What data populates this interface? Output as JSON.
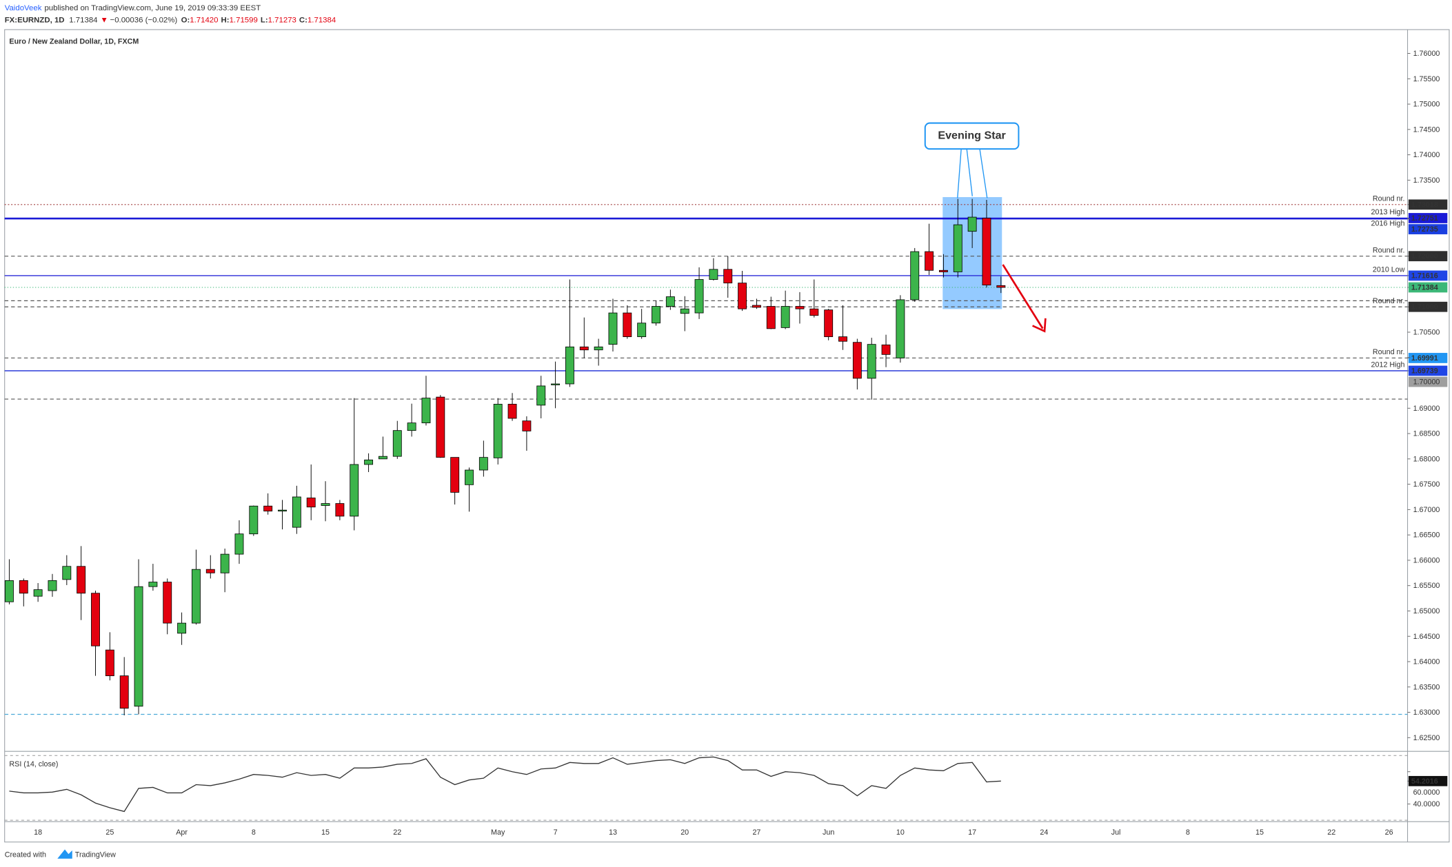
{
  "header": {
    "author": "VaidoVeek",
    "published": "published on TradingView.com, June 19, 2019 09:33:39 EEST",
    "symbol": "FX:EURNZD, 1D",
    "last": "1.71384",
    "arrow": "▼",
    "change": "−0.00036 (−0.02%)",
    "o_label": "O:",
    "o": "1.71420",
    "h_label": "H:",
    "h": "1.71599",
    "l_label": "L:",
    "l": "1.71273",
    "c_label": "C:",
    "c": "1.71384"
  },
  "footer": {
    "created": "Created with",
    "brand": "TradingView"
  },
  "annotations": [
    {
      "text": "Evening Star"
    }
  ],
  "chart_data": [
    {
      "type": "candlestick",
      "title": "Euro / New Zealand Dollar, 1D, FXCM",
      "categories": [
        null,
        null,
        "18",
        null,
        null,
        null,
        null,
        "25",
        null,
        null,
        null,
        null,
        "Apr",
        null,
        null,
        null,
        null,
        "8",
        null,
        null,
        null,
        null,
        "15",
        null,
        null,
        null,
        null,
        "22",
        null,
        null,
        null,
        null,
        null,
        null,
        "May",
        null,
        null,
        null,
        "7",
        null,
        null,
        null,
        "13",
        null,
        null,
        null,
        null,
        "20",
        null,
        null,
        null,
        null,
        "27",
        null,
        null,
        null,
        null,
        "Jun",
        null,
        null,
        null,
        null,
        "10",
        null,
        null,
        null,
        null,
        "17",
        null,
        null,
        null,
        null,
        "24",
        null,
        null,
        null,
        null,
        "Jul",
        null,
        null,
        null,
        null,
        "8",
        null,
        null,
        null,
        null,
        "15",
        null,
        null,
        null,
        null,
        "22",
        null,
        null,
        null,
        "26"
      ],
      "open": [
        1.6518,
        1.656,
        1.6529,
        1.654,
        1.6562,
        1.6588,
        1.6535,
        1.6423,
        1.6372,
        1.6312,
        1.6548,
        1.6557,
        1.6456,
        1.6476,
        1.6582,
        1.6575,
        1.6612,
        1.6652,
        1.6707,
        1.6697,
        1.6665,
        1.6723,
        1.6708,
        1.6712,
        1.6687,
        1.6789,
        1.68,
        1.6805,
        1.6856,
        1.6871,
        1.6922,
        1.6803,
        1.6749,
        1.6778,
        1.6802,
        1.6908,
        1.6875,
        1.6906,
        1.6946,
        1.6948,
        1.7021,
        1.7015,
        1.7026,
        1.7088,
        1.7041,
        1.7068,
        1.7101,
        1.7087,
        1.7088,
        1.7154,
        1.7174,
        1.7147,
        1.7103,
        1.7101,
        1.7059,
        1.7101,
        1.7096,
        1.7094,
        1.7041,
        1.703,
        1.6959,
        1.7025,
        1.6999,
        1.7114,
        1.7209,
        1.7172,
        1.7169,
        1.7249,
        1.7275,
        1.7142,
        null,
        null,
        null,
        null,
        null,
        null,
        null,
        null,
        null,
        null,
        null,
        null,
        null,
        null,
        null,
        null,
        null,
        null,
        null,
        null,
        null,
        null,
        null,
        null,
        null,
        null,
        null
      ],
      "high": [
        1.6602,
        1.6564,
        1.6555,
        1.6573,
        1.661,
        1.6628,
        1.654,
        1.6458,
        1.6409,
        1.6602,
        1.6593,
        1.6564,
        1.6497,
        1.6621,
        1.661,
        1.6623,
        1.6679,
        1.6708,
        1.6732,
        1.6719,
        1.6747,
        1.6789,
        1.6756,
        1.6719,
        1.692,
        1.6811,
        1.6844,
        1.6875,
        1.6909,
        1.6964,
        1.6926,
        1.6803,
        1.6783,
        1.6836,
        1.692,
        1.693,
        1.6884,
        1.6964,
        1.6992,
        1.7154,
        1.7079,
        1.7037,
        1.7116,
        1.7103,
        1.7096,
        1.7112,
        1.7134,
        1.7121,
        1.7178,
        1.7196,
        1.72,
        1.7171,
        1.7116,
        1.712,
        1.7132,
        1.7129,
        1.7154,
        1.7096,
        1.7103,
        1.7037,
        1.7039,
        1.7045,
        1.7123,
        1.7216,
        1.7264,
        1.7204,
        1.7313,
        1.7313,
        1.7311,
        1.71599,
        null,
        null,
        null,
        null,
        null,
        null,
        null,
        null,
        null,
        null,
        null,
        null,
        null,
        null,
        null,
        null,
        null,
        null,
        null,
        null,
        null,
        null,
        null,
        null,
        null,
        null,
        null
      ],
      "low": [
        1.6513,
        1.6509,
        1.6518,
        1.6528,
        1.6551,
        1.6482,
        1.6372,
        1.6363,
        1.6294,
        1.6296,
        1.654,
        1.6454,
        1.6433,
        1.6473,
        1.6564,
        1.6537,
        1.6593,
        1.6648,
        1.669,
        1.6661,
        1.6652,
        1.6679,
        1.6677,
        1.6679,
        1.6659,
        1.6774,
        1.68,
        1.68,
        1.6844,
        1.6866,
        1.6802,
        1.671,
        1.6696,
        1.6765,
        1.6789,
        1.6875,
        1.6816,
        1.688,
        1.69,
        1.6942,
        1.6999,
        1.6984,
        1.7012,
        1.7037,
        1.7037,
        1.7063,
        1.7094,
        1.7052,
        1.7076,
        1.7152,
        1.7118,
        1.7092,
        1.7096,
        1.7056,
        1.7056,
        1.7067,
        1.7079,
        1.7034,
        1.7015,
        1.6937,
        1.6917,
        1.6981,
        1.699,
        1.711,
        1.7163,
        1.7158,
        1.7158,
        1.7216,
        1.7138,
        1.71273,
        null,
        null,
        null,
        null,
        null,
        null,
        null,
        null,
        null,
        null,
        null,
        null,
        null,
        null,
        null,
        null,
        null,
        null,
        null,
        null,
        null,
        null,
        null,
        null,
        null,
        null,
        null
      ],
      "close": [
        1.656,
        1.6535,
        1.6542,
        1.656,
        1.6588,
        1.6535,
        1.6431,
        1.6372,
        1.6308,
        1.6548,
        1.6557,
        1.6476,
        1.6476,
        1.6582,
        1.6575,
        1.6612,
        1.6652,
        1.6707,
        1.6697,
        1.6699,
        1.6725,
        1.6705,
        1.6712,
        1.6687,
        1.6789,
        1.6798,
        1.6805,
        1.6856,
        1.6871,
        1.692,
        1.6803,
        1.6734,
        1.6778,
        1.6803,
        1.6908,
        1.688,
        1.6855,
        1.6944,
        1.6948,
        1.7021,
        1.7015,
        1.7021,
        1.7088,
        1.7041,
        1.7068,
        1.7101,
        1.712,
        1.7096,
        1.7154,
        1.7174,
        1.7147,
        1.7096,
        1.7099,
        1.7057,
        1.7101,
        1.7096,
        1.7083,
        1.7041,
        1.7032,
        1.6959,
        1.7026,
        1.7006,
        1.7114,
        1.7209,
        1.7172,
        1.7169,
        1.7262,
        1.7277,
        1.7143,
        1.71384,
        null,
        null,
        null,
        null,
        null,
        null,
        null,
        null,
        null,
        null,
        null,
        null,
        null,
        null,
        null,
        null,
        null,
        null,
        null,
        null,
        null,
        null,
        null,
        null,
        null,
        null,
        null
      ],
      "up_color": "#3cb44b",
      "down_color": "#e3000f",
      "last_price_color": "#3cb878",
      "ylim": [
        1.6223,
        1.7647
      ],
      "yticks": [
        {
          "value": 1.76,
          "label": "1.76000"
        },
        {
          "value": 1.755,
          "label": "1.75500"
        },
        {
          "value": 1.75,
          "label": "1.75000"
        },
        {
          "value": 1.745,
          "label": "1.74500"
        },
        {
          "value": 1.74,
          "label": "1.74000"
        },
        {
          "value": 1.735,
          "label": "1.73500"
        },
        {
          "value": 1.705,
          "label": "1.70500"
        },
        {
          "value": 1.7,
          "label": "1.70000"
        },
        {
          "value": 1.69,
          "label": "1.69000"
        },
        {
          "value": 1.685,
          "label": "1.68500"
        },
        {
          "value": 1.68,
          "label": "1.68000"
        },
        {
          "value": 1.675,
          "label": "1.67500"
        },
        {
          "value": 1.67,
          "label": "1.67000"
        },
        {
          "value": 1.665,
          "label": "1.66500"
        },
        {
          "value": 1.66,
          "label": "1.66000"
        },
        {
          "value": 1.655,
          "label": "1.65500"
        },
        {
          "value": 1.65,
          "label": "1.65000"
        },
        {
          "value": 1.645,
          "label": "1.64500"
        },
        {
          "value": 1.64,
          "label": "1.64000"
        },
        {
          "value": 1.635,
          "label": "1.63500"
        },
        {
          "value": 1.63,
          "label": "1.63000"
        },
        {
          "value": 1.625,
          "label": "1.62500"
        }
      ],
      "levels": [
        {
          "name": "Round nr.",
          "value": 1.73018,
          "color": "#a03c3c",
          "style": "dotted",
          "tag": "#2f2f2f"
        },
        {
          "name": "2013 High",
          "value": 1.72751,
          "color": "#1a1ad6",
          "style": "solid",
          "tag": "#1a1ad6"
        },
        {
          "name": "2016 High",
          "value": 1.72735,
          "color": "#1a1ad6",
          "style": "solid",
          "tag": "#1a3fe0"
        },
        {
          "name": "Round nr.",
          "value": 1.72,
          "label": "1.72000",
          "color": "#555555",
          "style": "dashed",
          "tag": "#2f2f2f"
        },
        {
          "name": "2010 Low",
          "value": 1.71616,
          "color": "#2a2ad8",
          "style": "solid",
          "tag": "#1f45e6"
        },
        {
          "name": "Round nr.",
          "value": 1.71,
          "label": "1.71000",
          "color": "#555555",
          "style": "dashed",
          "tag": "#2f2f2f"
        },
        {
          "value": 1.7112,
          "color": "#555555",
          "style": "dashed"
        },
        {
          "name": "Round nr.",
          "value": 1.69991,
          "color": "#555555",
          "style": "dashed",
          "tag": "#2196f3"
        },
        {
          "name": "2012 High",
          "value": 1.69739,
          "color": "#2a3ad8",
          "style": "solid",
          "tag": "#1f45e6"
        },
        {
          "value": 1.6918,
          "color": "#555555",
          "style": "dashed"
        },
        {
          "value": 1.6296,
          "color": "#4aa8d8",
          "style": "dashed"
        }
      ]
    },
    {
      "type": "line",
      "title": "RSI (14, close)",
      "color": "#333333",
      "values": [
        48.0,
        46.9,
        46.9,
        47.4,
        49.1,
        45.7,
        40.6,
        37.7,
        35.4,
        49.7,
        50.3,
        46.9,
        46.9,
        52.0,
        51.4,
        53.1,
        55.4,
        58.3,
        57.7,
        56.6,
        59.4,
        57.7,
        58.3,
        56.0,
        62.3,
        62.3,
        62.9,
        64.6,
        65.1,
        68.0,
        56.6,
        52.0,
        54.9,
        56.0,
        62.3,
        60.0,
        58.3,
        61.7,
        62.3,
        65.7,
        65.1,
        65.1,
        68.6,
        64.6,
        65.7,
        66.9,
        67.4,
        65.1,
        68.6,
        69.1,
        66.9,
        61.1,
        61.1,
        57.1,
        60.0,
        59.4,
        57.7,
        52.6,
        51.4,
        45.1,
        51.4,
        49.7,
        57.7,
        62.3,
        61.1,
        60.6,
        65.1,
        65.7,
        53.7,
        54.2016,
        null,
        null,
        null,
        null,
        null,
        null,
        null,
        null,
        null,
        null,
        null,
        null,
        null,
        null,
        null,
        null,
        null,
        null,
        null,
        null,
        null,
        null,
        null,
        null,
        null,
        null,
        null
      ],
      "ylim": [
        29.1,
        72.6
      ],
      "yticks": [
        {
          "value": 60,
          "label": "60.0000"
        },
        {
          "value": 40,
          "label": "40.0000"
        }
      ],
      "bands": [
        70,
        30
      ]
    }
  ]
}
